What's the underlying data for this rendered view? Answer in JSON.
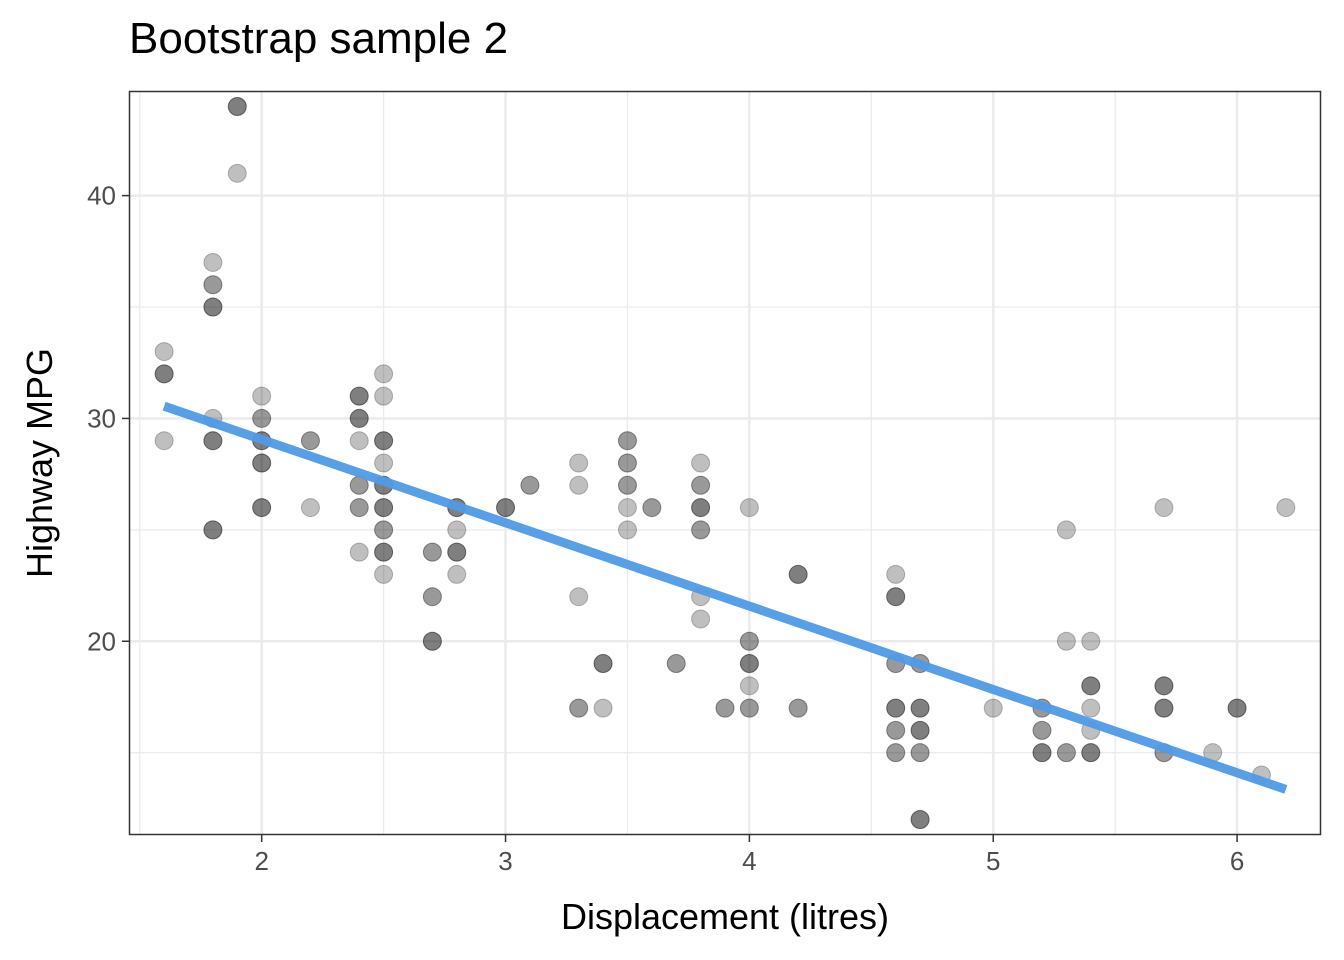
{
  "chart_data": {
    "type": "scatter",
    "title": "Bootstrap sample 2",
    "xlabel": "Displacement (litres)",
    "ylabel": "Highway MPG",
    "xlim": [
      1.46,
      6.34
    ],
    "ylim": [
      11.35,
      44.65
    ],
    "x_ticks": [
      2,
      3,
      4,
      5,
      6
    ],
    "y_ticks": [
      20,
      30,
      40
    ],
    "grid": true,
    "colors": {
      "point": "#000000",
      "fit_line": "#4f9be6",
      "grid": "#ebebeb",
      "panel_border": "#333333"
    },
    "fit_line": {
      "x": [
        1.6,
        6.2
      ],
      "y": [
        30.55,
        13.35
      ]
    },
    "points": [
      {
        "x": 1.6,
        "y": 33,
        "a": 0.5
      },
      {
        "x": 1.6,
        "y": 32,
        "a": 1
      },
      {
        "x": 1.6,
        "y": 29,
        "a": 0.5
      },
      {
        "x": 1.8,
        "y": 37,
        "a": 0.5
      },
      {
        "x": 1.8,
        "y": 36,
        "a": 0.8
      },
      {
        "x": 1.8,
        "y": 35,
        "a": 1
      },
      {
        "x": 1.8,
        "y": 30,
        "a": 0.5
      },
      {
        "x": 1.8,
        "y": 29,
        "a": 1
      },
      {
        "x": 1.8,
        "y": 25,
        "a": 1
      },
      {
        "x": 1.9,
        "y": 44,
        "a": 1
      },
      {
        "x": 1.9,
        "y": 41,
        "a": 0.5
      },
      {
        "x": 2.0,
        "y": 31,
        "a": 0.5
      },
      {
        "x": 2.0,
        "y": 30,
        "a": 0.8
      },
      {
        "x": 2.0,
        "y": 29,
        "a": 1
      },
      {
        "x": 2.0,
        "y": 28,
        "a": 1
      },
      {
        "x": 2.0,
        "y": 26,
        "a": 1
      },
      {
        "x": 2.2,
        "y": 29,
        "a": 0.8
      },
      {
        "x": 2.2,
        "y": 26,
        "a": 0.5
      },
      {
        "x": 2.4,
        "y": 31,
        "a": 1
      },
      {
        "x": 2.4,
        "y": 30,
        "a": 1
      },
      {
        "x": 2.4,
        "y": 29,
        "a": 0.5
      },
      {
        "x": 2.4,
        "y": 27,
        "a": 0.8
      },
      {
        "x": 2.4,
        "y": 26,
        "a": 0.8
      },
      {
        "x": 2.4,
        "y": 24,
        "a": 0.5
      },
      {
        "x": 2.5,
        "y": 32,
        "a": 0.5
      },
      {
        "x": 2.5,
        "y": 31,
        "a": 0.5
      },
      {
        "x": 2.5,
        "y": 29,
        "a": 1
      },
      {
        "x": 2.5,
        "y": 28,
        "a": 0.5
      },
      {
        "x": 2.5,
        "y": 27,
        "a": 1
      },
      {
        "x": 2.5,
        "y": 26,
        "a": 1
      },
      {
        "x": 2.5,
        "y": 25,
        "a": 0.8
      },
      {
        "x": 2.5,
        "y": 24,
        "a": 1
      },
      {
        "x": 2.5,
        "y": 23,
        "a": 0.5
      },
      {
        "x": 2.7,
        "y": 24,
        "a": 0.8
      },
      {
        "x": 2.7,
        "y": 22,
        "a": 0.8
      },
      {
        "x": 2.7,
        "y": 20,
        "a": 1
      },
      {
        "x": 2.8,
        "y": 26,
        "a": 1
      },
      {
        "x": 2.8,
        "y": 25,
        "a": 0.5
      },
      {
        "x": 2.8,
        "y": 24,
        "a": 1
      },
      {
        "x": 2.8,
        "y": 23,
        "a": 0.5
      },
      {
        "x": 3.0,
        "y": 26,
        "a": 1
      },
      {
        "x": 3.1,
        "y": 27,
        "a": 0.8
      },
      {
        "x": 3.3,
        "y": 28,
        "a": 0.5
      },
      {
        "x": 3.3,
        "y": 27,
        "a": 0.5
      },
      {
        "x": 3.3,
        "y": 22,
        "a": 0.5
      },
      {
        "x": 3.3,
        "y": 17,
        "a": 0.8
      },
      {
        "x": 3.4,
        "y": 19,
        "a": 1
      },
      {
        "x": 3.4,
        "y": 17,
        "a": 0.5
      },
      {
        "x": 3.5,
        "y": 29,
        "a": 0.8
      },
      {
        "x": 3.5,
        "y": 28,
        "a": 0.8
      },
      {
        "x": 3.5,
        "y": 27,
        "a": 0.8
      },
      {
        "x": 3.5,
        "y": 26,
        "a": 0.5
      },
      {
        "x": 3.5,
        "y": 25,
        "a": 0.5
      },
      {
        "x": 3.6,
        "y": 26,
        "a": 0.8
      },
      {
        "x": 3.7,
        "y": 19,
        "a": 0.8
      },
      {
        "x": 3.8,
        "y": 28,
        "a": 0.5
      },
      {
        "x": 3.8,
        "y": 27,
        "a": 0.8
      },
      {
        "x": 3.8,
        "y": 26,
        "a": 1
      },
      {
        "x": 3.8,
        "y": 25,
        "a": 0.8
      },
      {
        "x": 3.8,
        "y": 22,
        "a": 0.5
      },
      {
        "x": 3.8,
        "y": 21,
        "a": 0.5
      },
      {
        "x": 3.9,
        "y": 17,
        "a": 0.8
      },
      {
        "x": 4.0,
        "y": 26,
        "a": 0.5
      },
      {
        "x": 4.0,
        "y": 20,
        "a": 0.8
      },
      {
        "x": 4.0,
        "y": 19,
        "a": 1
      },
      {
        "x": 4.0,
        "y": 18,
        "a": 0.5
      },
      {
        "x": 4.0,
        "y": 17,
        "a": 0.8
      },
      {
        "x": 4.2,
        "y": 23,
        "a": 1
      },
      {
        "x": 4.2,
        "y": 17,
        "a": 0.8
      },
      {
        "x": 4.6,
        "y": 23,
        "a": 0.5
      },
      {
        "x": 4.6,
        "y": 22,
        "a": 1
      },
      {
        "x": 4.6,
        "y": 19,
        "a": 0.8
      },
      {
        "x": 4.6,
        "y": 17,
        "a": 1
      },
      {
        "x": 4.6,
        "y": 16,
        "a": 0.8
      },
      {
        "x": 4.6,
        "y": 15,
        "a": 0.8
      },
      {
        "x": 4.7,
        "y": 19,
        "a": 0.8
      },
      {
        "x": 4.7,
        "y": 17,
        "a": 1
      },
      {
        "x": 4.7,
        "y": 16,
        "a": 1
      },
      {
        "x": 4.7,
        "y": 15,
        "a": 0.8
      },
      {
        "x": 4.7,
        "y": 12,
        "a": 1
      },
      {
        "x": 5.0,
        "y": 17,
        "a": 0.5
      },
      {
        "x": 5.2,
        "y": 17,
        "a": 0.8
      },
      {
        "x": 5.2,
        "y": 16,
        "a": 0.8
      },
      {
        "x": 5.2,
        "y": 15,
        "a": 1
      },
      {
        "x": 5.3,
        "y": 25,
        "a": 0.5
      },
      {
        "x": 5.3,
        "y": 20,
        "a": 0.5
      },
      {
        "x": 5.3,
        "y": 15,
        "a": 0.8
      },
      {
        "x": 5.4,
        "y": 20,
        "a": 0.5
      },
      {
        "x": 5.4,
        "y": 18,
        "a": 1
      },
      {
        "x": 5.4,
        "y": 17,
        "a": 0.5
      },
      {
        "x": 5.4,
        "y": 16,
        "a": 0.5
      },
      {
        "x": 5.4,
        "y": 15,
        "a": 1
      },
      {
        "x": 5.7,
        "y": 26,
        "a": 0.5
      },
      {
        "x": 5.7,
        "y": 18,
        "a": 1
      },
      {
        "x": 5.7,
        "y": 17,
        "a": 1
      },
      {
        "x": 5.7,
        "y": 15,
        "a": 0.8
      },
      {
        "x": 5.9,
        "y": 15,
        "a": 0.5
      },
      {
        "x": 6.0,
        "y": 17,
        "a": 1
      },
      {
        "x": 6.1,
        "y": 14,
        "a": 0.5
      },
      {
        "x": 6.2,
        "y": 26,
        "a": 0.5
      }
    ]
  }
}
